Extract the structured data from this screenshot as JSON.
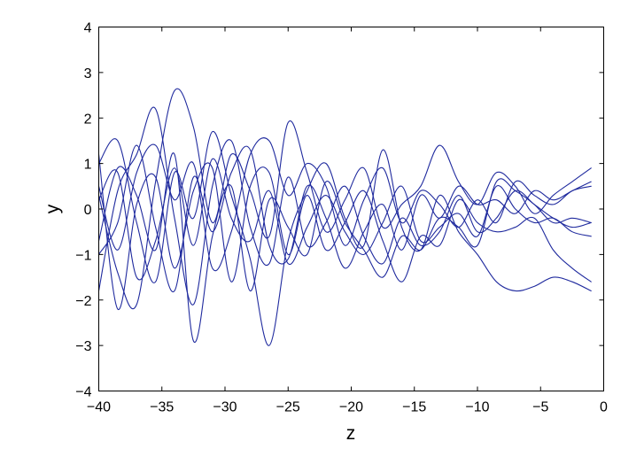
{
  "chart_data": {
    "type": "line",
    "title": "",
    "xlabel": "z",
    "ylabel": "y",
    "xlim": [
      -40,
      0
    ],
    "ylim": [
      -4,
      4
    ],
    "xticks": [
      -40,
      -35,
      -30,
      -25,
      -20,
      -15,
      -10,
      -5,
      0
    ],
    "yticks": [
      -4,
      -3,
      -2,
      -1,
      0,
      1,
      2,
      3,
      4
    ],
    "grid": false,
    "line_color": "#1f2a9e",
    "x": [
      -40,
      -38.5,
      -37,
      -35.5,
      -34,
      -32.5,
      -31,
      -29.5,
      -28,
      -26.5,
      -25,
      -23.5,
      -22,
      -20.5,
      -19,
      -17.5,
      -16,
      -14.5,
      -13,
      -11.5,
      -10,
      -8.5,
      -7,
      -5.5,
      -4,
      -2.5,
      -1
    ],
    "series": [
      {
        "values": [
          0.3,
          -1.4,
          -2.1,
          0.6,
          2.6,
          1.8,
          -0.3,
          1.2,
          0.4,
          -0.6,
          1.9,
          0.8,
          -0.5,
          0.2,
          0.9,
          -0.4,
          0.1,
          0.5,
          1.4,
          0.6,
          0.1,
          0.8,
          0.5,
          -0.1,
          0.3,
          0.6,
          0.9
        ]
      },
      {
        "values": [
          -1.8,
          0.4,
          1.2,
          2.2,
          -0.2,
          -2.1,
          0.5,
          1.5,
          -0.4,
          -1.2,
          0.7,
          -0.8,
          -0.3,
          0.5,
          -0.6,
          -1.2,
          -0.2,
          -0.8,
          -0.5,
          0.3,
          -0.5,
          -0.2,
          0.4,
          0.1,
          -0.2,
          -0.4,
          -0.3
        ]
      },
      {
        "values": [
          1.0,
          1.5,
          -0.3,
          -1.6,
          0.8,
          -0.2,
          1.7,
          0.3,
          -1.1,
          -3.0,
          -0.7,
          0.4,
          1.0,
          -0.2,
          -0.8,
          1.3,
          -0.4,
          -0.9,
          0.3,
          -0.5,
          -1.0,
          -1.6,
          -1.8,
          -1.7,
          -1.5,
          -1.6,
          -1.8
        ]
      },
      {
        "values": [
          -0.7,
          0.9,
          0.3,
          -0.9,
          1.2,
          -2.9,
          -0.6,
          0.5,
          -1.8,
          0.2,
          -0.4,
          -1.0,
          0.6,
          -0.3,
          -0.9,
          -1.5,
          -0.6,
          -0.9,
          -0.2,
          -0.4,
          -0.8,
          0.6,
          0.4,
          0.1,
          -0.3,
          -0.2,
          -0.3
        ]
      },
      {
        "values": [
          0.5,
          -0.9,
          0.8,
          1.4,
          0.2,
          1.0,
          -1.3,
          -0.5,
          1.2,
          1.5,
          0.3,
          1.0,
          0.5,
          -0.8,
          0.2,
          0.9,
          -0.3,
          0.4,
          0.1,
          -0.4,
          0.2,
          -0.3,
          0.6,
          0.3,
          0.1,
          0.4,
          0.5
        ]
      },
      {
        "values": [
          1.2,
          -2.2,
          0.1,
          0.7,
          -1.3,
          0.4,
          0.9,
          -1.6,
          0.5,
          0.8,
          -1.0,
          0.3,
          -0.9,
          -0.3,
          0.4,
          -0.7,
          -1.6,
          -0.6,
          -0.8,
          0.2,
          -0.3,
          -0.5,
          -0.4,
          -0.2,
          -0.9,
          -1.3,
          -1.6
        ]
      },
      {
        "values": [
          -1.0,
          -0.3,
          1.4,
          -0.4,
          -1.8,
          0.7,
          -0.5,
          0.8,
          1.3,
          -0.8,
          -1.1,
          0.5,
          -0.2,
          -1.3,
          -0.5,
          0.1,
          -0.9,
          0.3,
          -0.2,
          0.5,
          0.1,
          0.2,
          -0.1,
          0.4,
          0.2,
          0.4,
          0.6
        ]
      },
      {
        "values": [
          0.2,
          0.8,
          -1.5,
          -0.7,
          0.9,
          -0.8,
          1.1,
          -0.2,
          -0.7,
          0.4,
          -1.2,
          -0.4,
          0.3,
          -0.5,
          -1.0,
          -0.3,
          0.5,
          -0.7,
          -0.4,
          -0.1,
          -0.6,
          0.5,
          0.0,
          -0.3,
          -0.2,
          -0.5,
          -0.6
        ]
      }
    ]
  }
}
